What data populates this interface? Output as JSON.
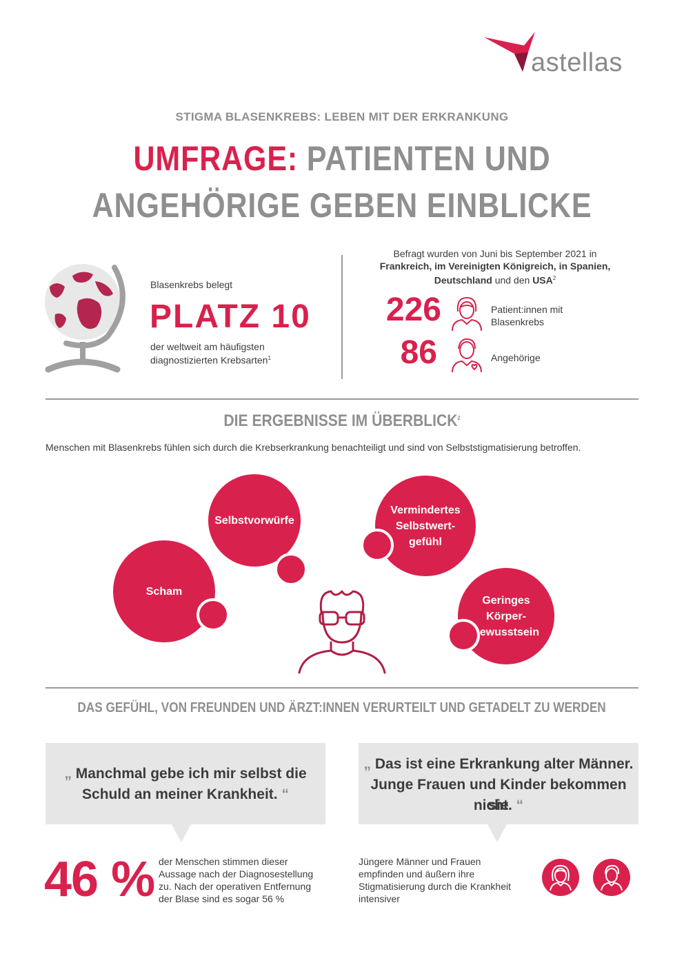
{
  "logo": {
    "text": "astellas"
  },
  "header": {
    "kicker": "STIGMA BLASENKREBS: LEBEN MIT DER ERKRANKUNG",
    "title_highlight": "UMFRAGE:",
    "title_line1_rest": "PATIENTEN UND",
    "title_line2": "ANGEHÖRIGE GEBEN EINBLICKE"
  },
  "rank": {
    "intro": "Blasenkrebs belegt",
    "value": "PLATZ 10",
    "desc_line1": "der weltweit am häufigsten",
    "desc_line2": "diagnostizierten Krebsarten",
    "footnote": "1"
  },
  "survey": {
    "line1": "Befragt wurden von Juni bis September 2021 in",
    "line2": "Frankreich, im Vereinigten Königreich, in Spanien,",
    "line3_a": "Deutschland",
    "line3_b": "und den",
    "line3_c": "USA",
    "footnote": "2",
    "patients_count": "226",
    "patients_label_1": "Patient:innen mit",
    "patients_label_2": "Blasenkrebs",
    "relatives_count": "86",
    "relatives_label": "Angehörige"
  },
  "results": {
    "heading": "DIE ERGEBNISSE IM ÜBERBLICK",
    "footnote": "2",
    "intro": "Menschen mit Blasenkrebs fühlen sich durch die Krebserkrankung benachteiligt und sind von Selbststigmatisierung betroffen.",
    "bubbles": {
      "selbstvorwuerfe": "Selbstvorwürfe",
      "scham": "Scham",
      "selbstwert_1": "Vermindertes",
      "selbstwert_2": "Selbstwert-",
      "selbstwert_3": "gefühl",
      "koerper_1": "Geringes",
      "koerper_2": "Körper-",
      "koerper_3": "bewusstsein"
    }
  },
  "judged": {
    "heading": "DAS GEFÜHL, VON FREUNDEN UND ÄRZT:INNEN VERURTEILT UND GETADELT ZU WERDEN",
    "quote_open": "„",
    "quote_close": "“",
    "quote1_line1": "Manchmal gebe ich mir selbst die",
    "quote1_line2": "Schuld an meiner Krankheit.",
    "quote2_line1": "Das ist eine Erkrankung alter Männer.",
    "quote2_line2": "Junge Frauen und Kinder bekommen sie",
    "quote2_line3": "nicht.",
    "stat_value": "46 %",
    "stat_line1": "der Menschen stimmen dieser",
    "stat_line2": "Aussage nach der Diagnosestellung",
    "stat_line3": "zu. Nach der operativen Entfernung",
    "stat_line4": "der Blase sind es sogar 56 %",
    "young_line1": "Jüngere Männer und Frauen",
    "young_line2": "empfinden und äußern ihre",
    "young_line3": "Stigmatisierung durch die Krankheit",
    "young_line4": "intensiver"
  },
  "colors": {
    "accent": "#d9214d",
    "grey_text": "#8f8f8f",
    "quote_bg": "#e6e6e6"
  },
  "icons": [
    "astellas-star-icon",
    "globe-icon",
    "patient-woman-icon",
    "relative-heart-icon",
    "man-glasses-icon",
    "young-woman-icon",
    "young-man-icon"
  ]
}
